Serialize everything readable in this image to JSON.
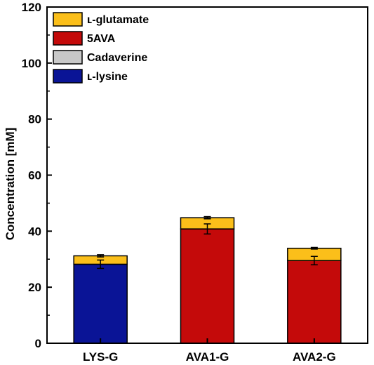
{
  "chart_data": {
    "type": "bar",
    "stacked": true,
    "categories": [
      "LYS-G",
      "AVA1-G",
      "AVA2-G"
    ],
    "ylabel": "Concentration [mM]",
    "xlabel": "",
    "ylim": [
      0,
      120
    ],
    "yticks": [
      0,
      20,
      40,
      60,
      80,
      100,
      120
    ],
    "grid": false,
    "legend_position": "top-left",
    "series": [
      {
        "name": "ʟ-lysine",
        "color": "#0a1496",
        "values": [
          28.2,
          0,
          0
        ],
        "error": [
          1.5,
          0,
          0
        ]
      },
      {
        "name": "Cadaverine",
        "color": "#c8c8c8",
        "values": [
          0,
          0,
          0
        ],
        "error": [
          0,
          0,
          0
        ]
      },
      {
        "name": "5AVA",
        "color": "#c40a0a",
        "values": [
          0,
          40.8,
          29.5
        ],
        "error": [
          0,
          1.8,
          1.5
        ]
      },
      {
        "name": "ʟ-glutamate",
        "color": "#fbbf1a",
        "values": [
          3.0,
          4.0,
          4.4
        ],
        "error": [
          0.4,
          0.4,
          0.3
        ]
      }
    ],
    "legend_order": [
      3,
      2,
      1,
      0
    ]
  }
}
